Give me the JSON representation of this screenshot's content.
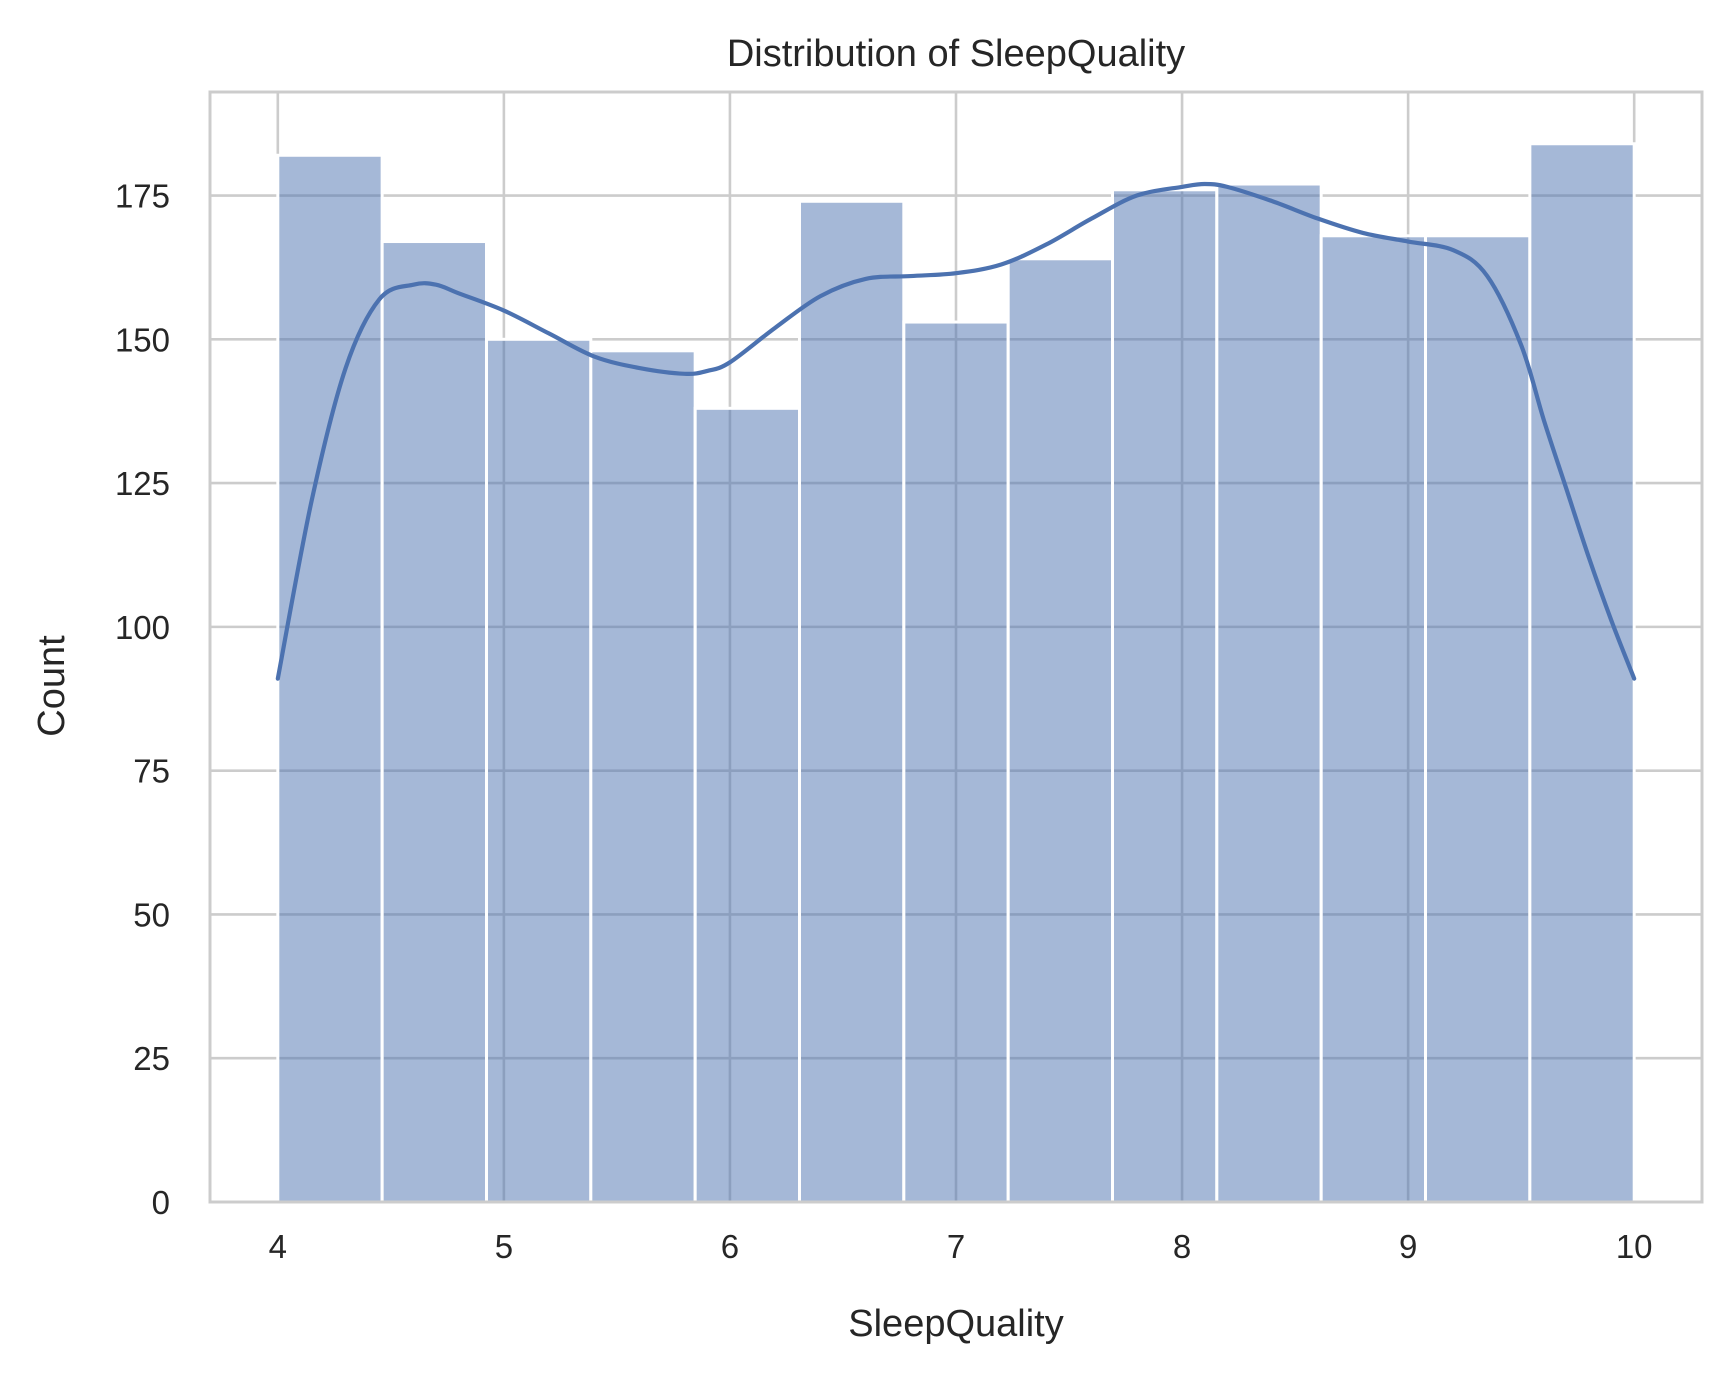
{
  "chart_data": {
    "type": "bar",
    "subtype": "histogram with kde",
    "title": "Distribution of SleepQuality",
    "xlabel": "SleepQuality",
    "ylabel": "Count",
    "xlim": [
      3.7,
      10.3
    ],
    "ylim": [
      0,
      193
    ],
    "xticks": [
      4,
      5,
      6,
      7,
      8,
      9,
      10
    ],
    "yticks": [
      0,
      25,
      50,
      75,
      100,
      125,
      150,
      175
    ],
    "grid": true,
    "bar_color": "#4c72b0",
    "bar_opacity": 0.5,
    "line_color": "#4c72b0",
    "bin_edges": [
      4.0,
      4.4615,
      4.9231,
      5.3846,
      5.8462,
      6.3077,
      6.7692,
      7.2308,
      7.6923,
      8.1538,
      8.6154,
      9.0769,
      9.5385,
      10.0
    ],
    "values": [
      182,
      167,
      150,
      148,
      138,
      174,
      153,
      164,
      176,
      177,
      168,
      168,
      184
    ],
    "kde": {
      "x": [
        4.0,
        4.15,
        4.3,
        4.45,
        4.6,
        4.7,
        4.8,
        5.0,
        5.2,
        5.4,
        5.6,
        5.8,
        5.9,
        6.0,
        6.2,
        6.4,
        6.6,
        6.8,
        7.0,
        7.2,
        7.4,
        7.6,
        7.8,
        8.0,
        8.1,
        8.2,
        8.4,
        8.6,
        8.8,
        9.0,
        9.2,
        9.35,
        9.5,
        9.6,
        9.7,
        9.8,
        9.9,
        10.0
      ],
      "y": [
        91,
        122,
        145,
        157,
        159.5,
        159.5,
        158,
        155,
        151,
        147,
        145,
        144,
        144.5,
        146,
        152,
        157.5,
        160.5,
        161,
        161.5,
        163,
        166.5,
        171,
        175,
        176.5,
        177,
        176.5,
        174,
        171,
        168.5,
        167,
        165.5,
        161,
        149,
        136,
        124,
        112,
        101,
        91
      ]
    }
  }
}
